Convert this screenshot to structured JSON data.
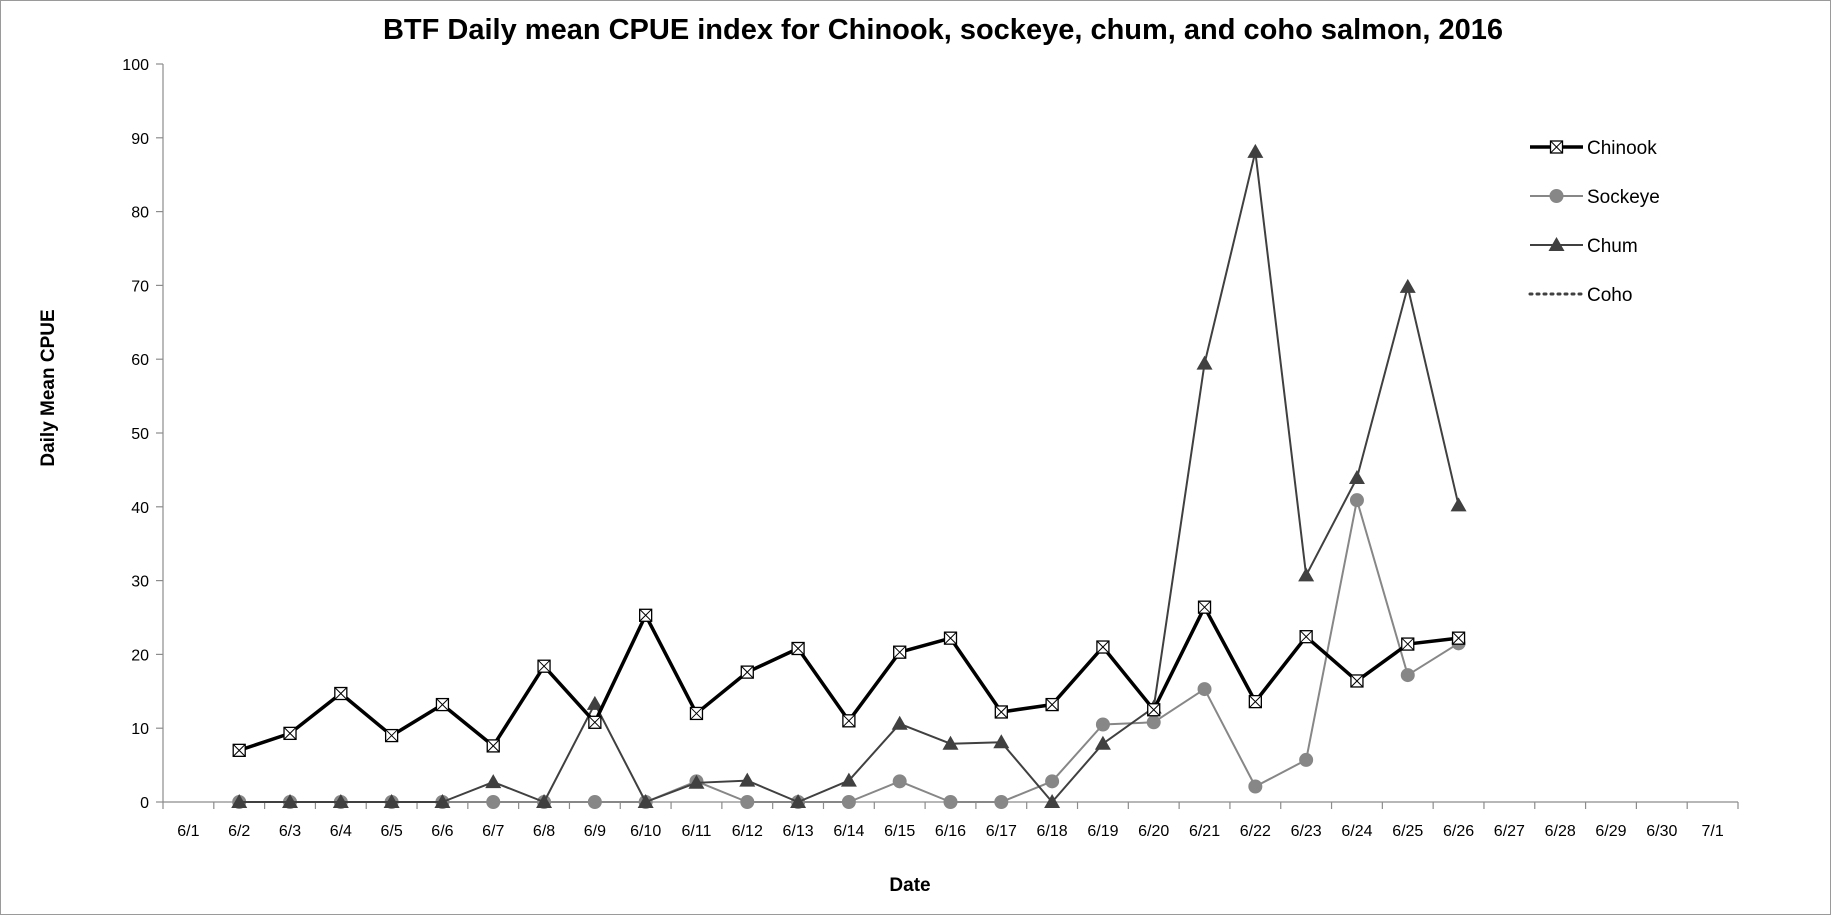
{
  "chart_data": {
    "type": "line",
    "title": "BTF Daily mean CPUE index for Chinook, sockeye, chum, and coho salmon, 2016",
    "xlabel": "Date",
    "ylabel": "Daily Mean CPUE",
    "ylim": [
      0,
      100
    ],
    "yticks": [
      "0",
      "10",
      "20",
      "30",
      "40",
      "50",
      "60",
      "70",
      "80",
      "90",
      "100"
    ],
    "categories": [
      "6/1",
      "6/2",
      "6/3",
      "6/4",
      "6/5",
      "6/6",
      "6/7",
      "6/8",
      "6/9",
      "6/10",
      "6/11",
      "6/12",
      "6/13",
      "6/14",
      "6/15",
      "6/16",
      "6/17",
      "6/18",
      "6/19",
      "6/20",
      "6/21",
      "6/22",
      "6/23",
      "6/24",
      "6/25",
      "6/26",
      "6/27",
      "6/28",
      "6/29",
      "6/30",
      "7/1"
    ],
    "grid": false,
    "legend_position": "top-right",
    "series": [
      {
        "name": "Chinook",
        "color": "#000000",
        "line": "solid-thick",
        "marker": "boxed-x",
        "values": [
          null,
          7,
          9.3,
          14.7,
          9,
          13.2,
          7.6,
          18.4,
          10.8,
          25.3,
          12,
          17.6,
          20.8,
          11,
          20.3,
          22.2,
          12.2,
          13.2,
          21,
          12.5,
          26.4,
          13.6,
          22.4,
          16.4,
          21.4,
          22.2,
          null,
          null,
          null,
          null,
          null
        ]
      },
      {
        "name": "Sockeye",
        "color": "#878787",
        "line": "solid",
        "marker": "circle",
        "values": [
          null,
          0,
          0,
          0,
          0,
          0,
          0,
          0,
          0,
          0,
          2.8,
          0,
          0,
          0,
          2.8,
          0,
          0,
          2.8,
          10.5,
          10.8,
          15.3,
          2.1,
          5.7,
          40.9,
          17.2,
          21.5,
          null,
          null,
          null,
          null,
          null
        ]
      },
      {
        "name": "Chum",
        "color": "#404040",
        "line": "solid",
        "marker": "triangle",
        "values": [
          null,
          0,
          0,
          0,
          0,
          0,
          2.7,
          0,
          13.3,
          0,
          2.6,
          2.9,
          0,
          2.9,
          10.6,
          7.9,
          8.1,
          0,
          7.9,
          12.8,
          59.4,
          88.1,
          30.7,
          43.9,
          69.8,
          40.2,
          null,
          null,
          null,
          null,
          null
        ]
      },
      {
        "name": "Coho",
        "color": "#404040",
        "line": "dotted",
        "marker": "none",
        "values": [
          null,
          null,
          null,
          null,
          null,
          null,
          null,
          null,
          null,
          null,
          null,
          null,
          null,
          null,
          null,
          null,
          null,
          null,
          null,
          null,
          null,
          null,
          null,
          null,
          null,
          null,
          null,
          null,
          null,
          null,
          null
        ]
      }
    ]
  }
}
